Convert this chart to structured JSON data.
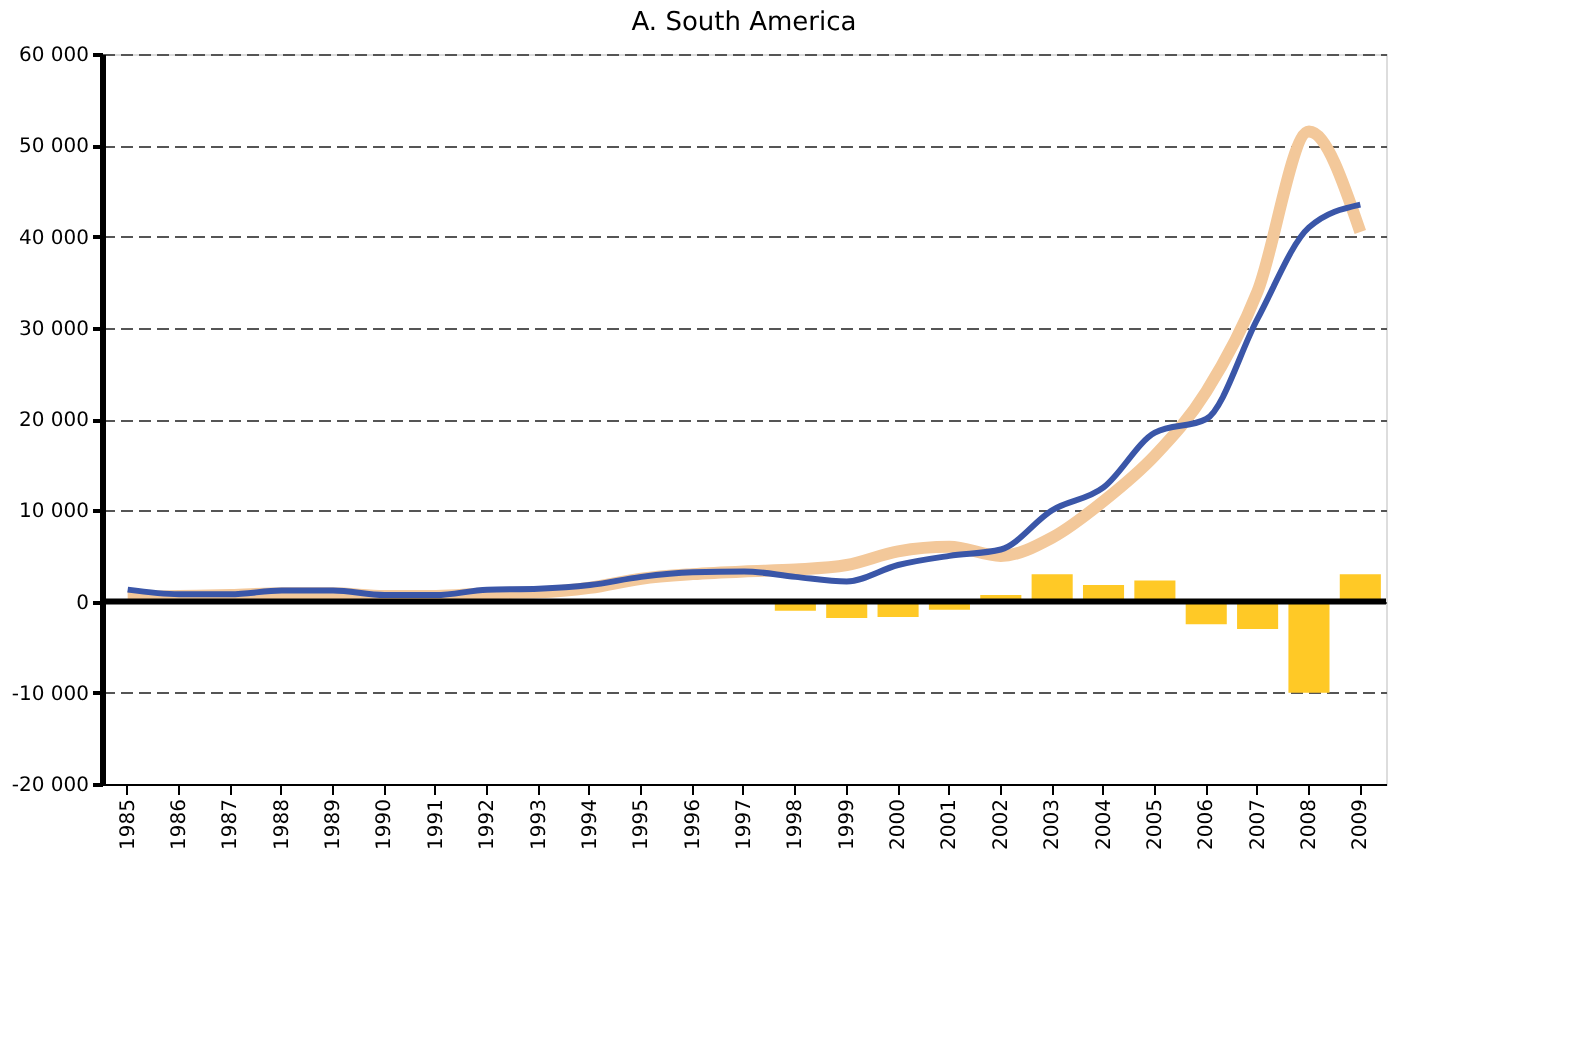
{
  "chart_data": {
    "type": "line",
    "title": "A. South America",
    "categories": [
      "1985",
      "1986",
      "1987",
      "1988",
      "1989",
      "1990",
      "1991",
      "1992",
      "1993",
      "1994",
      "1995",
      "1996",
      "1997",
      "1998",
      "1999",
      "2000",
      "2001",
      "2002",
      "2003",
      "2004",
      "2005",
      "2006",
      "2007",
      "2008",
      "2009"
    ],
    "series": [
      {
        "type": "bar",
        "color": "#ffc926",
        "values": [
          null,
          null,
          null,
          null,
          null,
          null,
          null,
          null,
          null,
          null,
          null,
          null,
          null,
          -1000,
          -1800,
          -1700,
          -900,
          700,
          3000,
          1800,
          2300,
          -2500,
          -3000,
          -10000,
          3000
        ]
      },
      {
        "color": "#f3c89a",
        "values": [
          500,
          600,
          700,
          900,
          900,
          600,
          600,
          900,
          1000,
          1500,
          2500,
          3000,
          3300,
          3500,
          4000,
          5500,
          6000,
          5000,
          7000,
          11000,
          16000,
          23000,
          34000,
          51500,
          40500
        ]
      },
      {
        "color": "#3a56a8",
        "values": [
          1300,
          800,
          800,
          1200,
          1200,
          700,
          700,
          1300,
          1400,
          1800,
          2700,
          3200,
          3300,
          2700,
          2200,
          4000,
          5000,
          5700,
          10000,
          12500,
          18500,
          20000,
          31000,
          41000,
          43500
        ]
      }
    ],
    "ylim": [
      -20000,
      60000
    ],
    "yticks": [
      {
        "value": -20000,
        "label": "-20 000"
      },
      {
        "value": -10000,
        "label": "-10 000"
      },
      0,
      {
        "value": 10000,
        "label": "10 000"
      },
      {
        "value": 20000,
        "label": "20 000"
      },
      {
        "value": 30000,
        "label": "30 000"
      },
      {
        "value": 40000,
        "label": "40 000"
      },
      {
        "value": 50000,
        "label": "50 000"
      },
      {
        "value": 60000,
        "label": "60 000"
      }
    ],
    "grid": "y",
    "line_style": "solid",
    "marker": "none"
  }
}
